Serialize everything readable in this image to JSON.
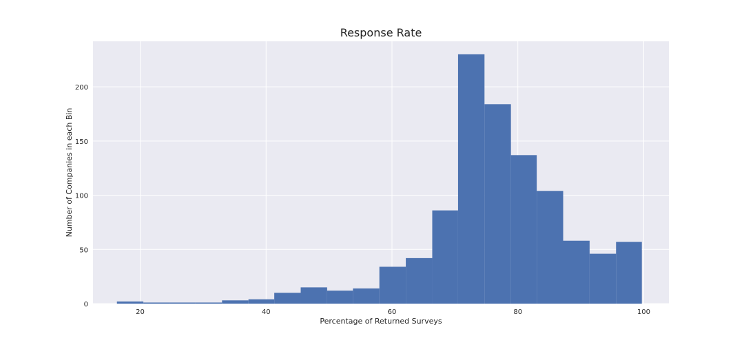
{
  "chart_data": {
    "type": "bar",
    "title": "Response Rate",
    "xlabel": "Percentage of Returned Surveys",
    "ylabel": "Number of Companies in each Bin",
    "xlim": [
      12.5,
      104
    ],
    "ylim": [
      0,
      242
    ],
    "xticks": [
      20,
      40,
      60,
      80,
      100
    ],
    "yticks": [
      0,
      50,
      100,
      150,
      200
    ],
    "grid": true,
    "bin_edges": [
      16.3,
      20.5,
      24.6,
      28.8,
      33.0,
      37.2,
      41.3,
      45.5,
      49.7,
      53.8,
      58.0,
      62.2,
      66.4,
      70.5,
      74.7,
      78.9,
      83.0,
      87.2,
      91.4,
      95.6,
      99.7
    ],
    "counts": [
      2,
      1,
      1,
      1,
      3,
      4,
      10,
      15,
      12,
      14,
      34,
      42,
      86,
      230,
      184,
      137,
      104,
      58,
      46,
      57
    ],
    "bar_color": "#4c72b0",
    "background_color": "#eaeaf2",
    "grid_color": "#ffffff"
  }
}
